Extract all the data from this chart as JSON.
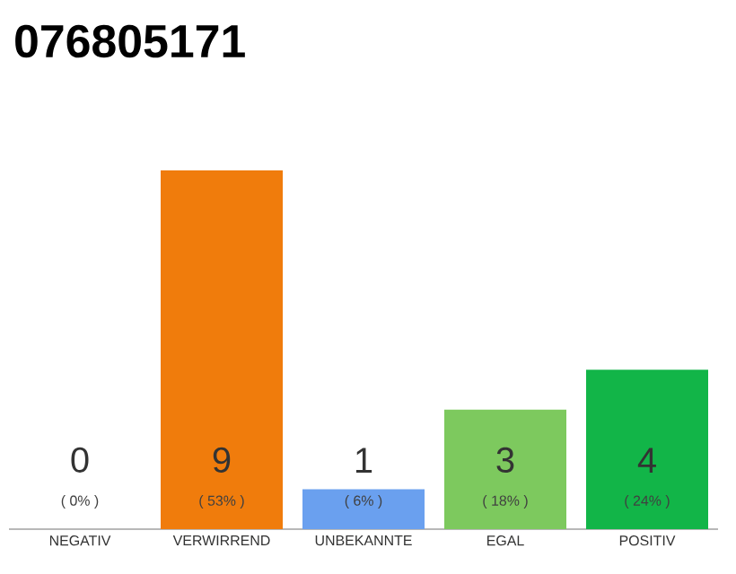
{
  "chart_data": {
    "type": "bar",
    "title": "076805171",
    "categories": [
      "NEGATIV",
      "VERWIRREND",
      "UNBEKANNTE",
      "EGAL",
      "POSITIV"
    ],
    "values": [
      0,
      9,
      1,
      3,
      4
    ],
    "colors": [
      "#6e6e6e",
      "#f07c0c",
      "#6aa0ef",
      "#7dc95e",
      "#12b548"
    ],
    "value_labels": [
      "0",
      "9",
      "1",
      "3",
      "4"
    ],
    "annotations": [
      {
        "text": "( 0% )",
        "x": "NEGATIV",
        "y": 0
      },
      {
        "text": "( 53% )",
        "x": "VERWIRREND",
        "y": 0
      },
      {
        "text": "( 6% )",
        "x": "UNBEKANNTE",
        "y": 0
      },
      {
        "text": "( 18% )",
        "x": "EGAL",
        "y": 0
      },
      {
        "text": "( 24% )",
        "x": "POSITIV",
        "y": 0
      }
    ],
    "tick_labels": "x"
  }
}
